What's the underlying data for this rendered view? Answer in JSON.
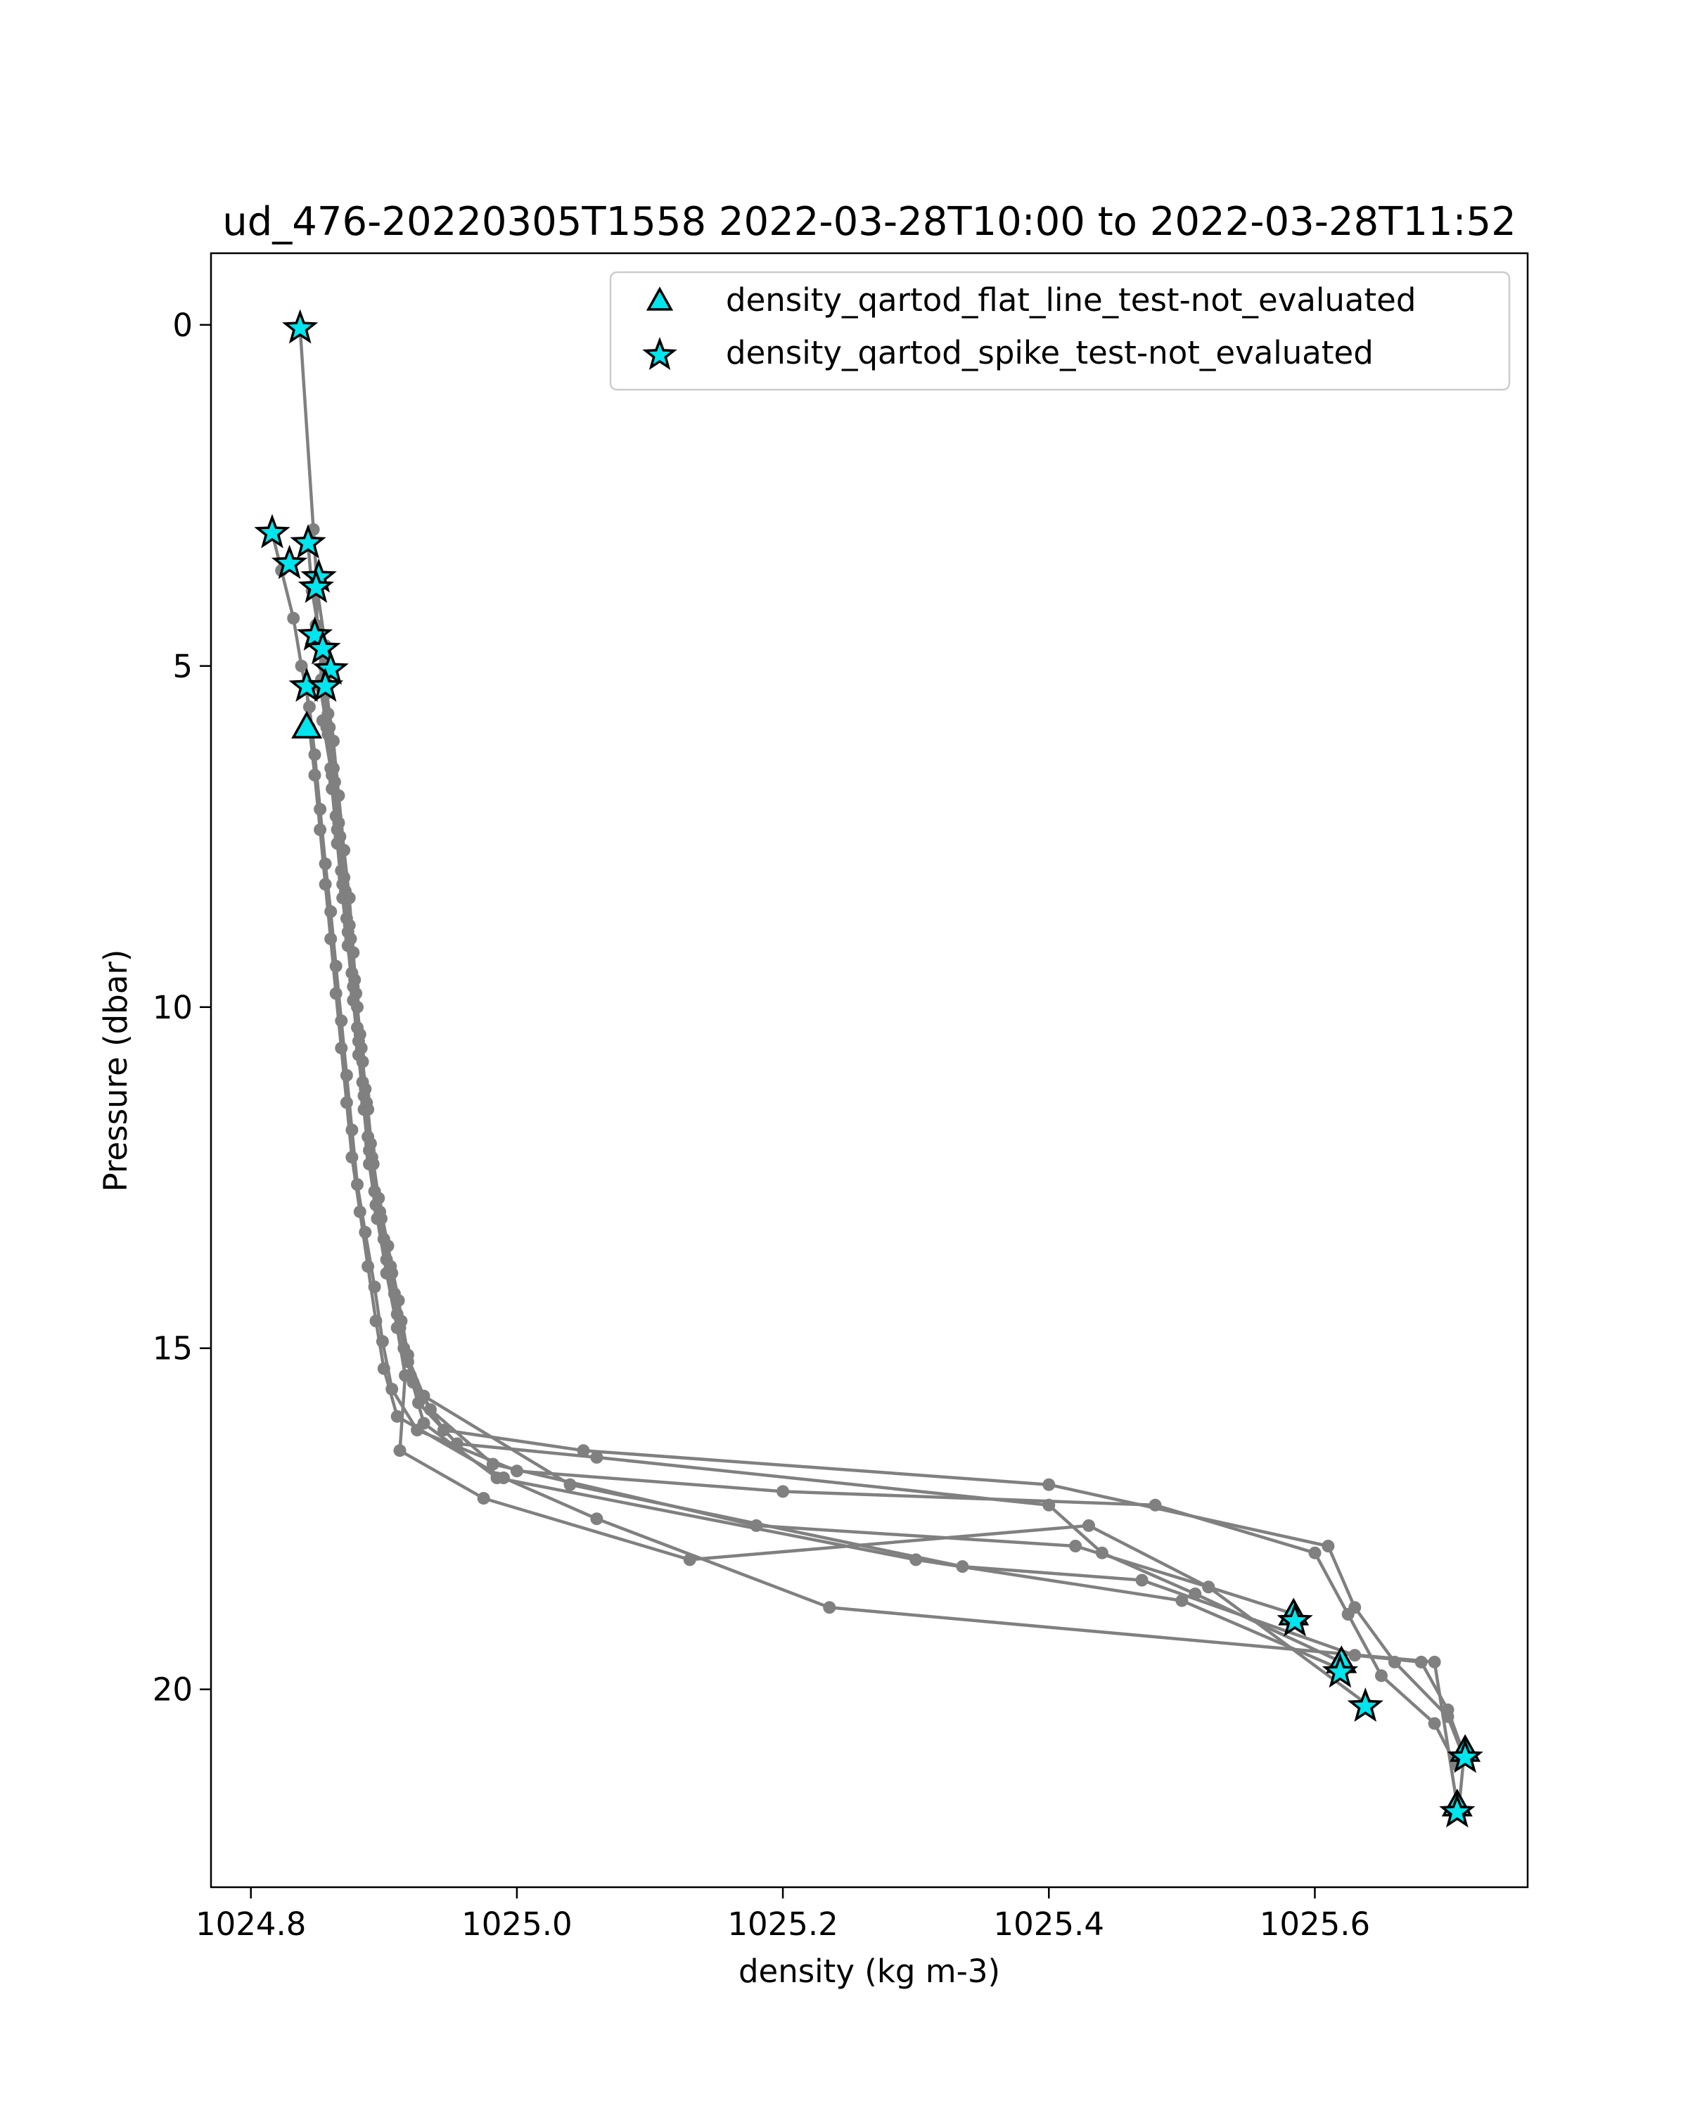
{
  "chart_data": {
    "type": "line",
    "title": "ud_476-20220305T1558 2022-03-28T10:00 to 2022-03-28T11:52",
    "xlabel": "density (kg m-3)",
    "ylabel": "Pressure (dbar)",
    "xlim": [
      1024.77,
      1025.76
    ],
    "ylim": [
      22.9,
      -1.05
    ],
    "y_inverted": true,
    "grid": false,
    "x_ticks": [
      1024.8,
      1025.0,
      1025.2,
      1025.4,
      1025.6
    ],
    "x_tick_labels": [
      "1024.8",
      "1025.0",
      "1025.2",
      "1025.4",
      "1025.6"
    ],
    "y_ticks": [
      0,
      5,
      10,
      15,
      20
    ],
    "y_tick_labels": [
      "0",
      "5",
      "10",
      "15",
      "20"
    ],
    "legend_position": "top-right",
    "colors": {
      "profile": "#808080",
      "marker_fill": "#00e5ee",
      "marker_edge": "#000000"
    },
    "legend": [
      {
        "label": "density_qartod_flat_line_test-not_evaluated",
        "marker": "triangle"
      },
      {
        "label": "density_qartod_spike_test-not_evaluated",
        "marker": "star"
      }
    ],
    "series": [
      {
        "points": [
          [
            1024.837,
            0.05
          ],
          [
            1024.847,
            3.0
          ],
          [
            1024.85,
            3.9
          ],
          [
            1024.856,
            4.7
          ],
          [
            1024.857,
            5.4
          ],
          [
            1024.862,
            6.1
          ],
          [
            1024.866,
            6.9
          ],
          [
            1024.87,
            7.7
          ],
          [
            1024.874,
            8.4
          ],
          [
            1024.877,
            9.2
          ],
          [
            1024.88,
            10.0
          ],
          [
            1024.884,
            10.8
          ],
          [
            1024.888,
            11.5
          ],
          [
            1024.892,
            12.3
          ],
          [
            1024.898,
            13.1
          ],
          [
            1024.906,
            13.9
          ],
          [
            1024.912,
            14.7
          ],
          [
            1024.922,
            15.5
          ],
          [
            1024.945,
            16.2
          ],
          [
            1025.05,
            16.5
          ],
          [
            1025.4,
            17.0
          ],
          [
            1025.61,
            17.9
          ],
          [
            1025.63,
            18.8
          ],
          [
            1025.66,
            19.6
          ],
          [
            1025.7,
            20.4
          ],
          [
            1025.712,
            21.0
          ],
          [
            1025.708,
            21.8
          ]
        ]
      },
      {
        "points": [
          [
            1024.816,
            3.05
          ],
          [
            1024.823,
            3.6
          ],
          [
            1024.832,
            4.3
          ],
          [
            1024.838,
            5.0
          ],
          [
            1024.844,
            5.6
          ],
          [
            1024.848,
            6.3
          ],
          [
            1024.852,
            7.1
          ],
          [
            1024.856,
            7.9
          ],
          [
            1024.86,
            8.6
          ],
          [
            1024.864,
            9.4
          ],
          [
            1024.868,
            10.2
          ],
          [
            1024.872,
            11.0
          ],
          [
            1024.876,
            11.8
          ],
          [
            1024.88,
            12.6
          ],
          [
            1024.886,
            13.3
          ],
          [
            1024.893,
            14.1
          ],
          [
            1024.899,
            14.9
          ],
          [
            1024.906,
            15.6
          ],
          [
            1024.925,
            16.2
          ],
          [
            1025.0,
            16.8
          ],
          [
            1025.2,
            17.1
          ],
          [
            1025.48,
            17.3
          ],
          [
            1025.6,
            18.0
          ],
          [
            1025.625,
            18.9
          ],
          [
            1025.65,
            19.8
          ],
          [
            1025.69,
            20.5
          ],
          [
            1025.706,
            21.1
          ]
        ]
      },
      {
        "points": [
          [
            1024.843,
            3.2
          ],
          [
            1024.846,
            3.9
          ],
          [
            1024.852,
            4.6
          ],
          [
            1024.853,
            5.2
          ],
          [
            1024.857,
            5.9
          ],
          [
            1024.861,
            6.6
          ],
          [
            1024.865,
            7.4
          ],
          [
            1024.869,
            8.2
          ],
          [
            1024.873,
            8.9
          ],
          [
            1024.877,
            9.7
          ],
          [
            1024.881,
            10.5
          ],
          [
            1024.885,
            11.3
          ],
          [
            1024.889,
            12.1
          ],
          [
            1024.894,
            12.9
          ],
          [
            1024.902,
            13.7
          ],
          [
            1024.91,
            14.5
          ],
          [
            1024.918,
            15.2
          ],
          [
            1024.935,
            15.9
          ],
          [
            1024.982,
            16.7
          ],
          [
            1025.18,
            17.6
          ],
          [
            1025.42,
            17.9
          ],
          [
            1025.52,
            18.5
          ],
          [
            1025.585,
            18.9
          ]
        ]
      },
      {
        "points": [
          [
            1024.851,
            3.7
          ],
          [
            1024.849,
            4.4
          ],
          [
            1024.855,
            5.0
          ],
          [
            1024.858,
            5.7
          ],
          [
            1024.862,
            6.5
          ],
          [
            1024.866,
            7.3
          ],
          [
            1024.87,
            8.1
          ],
          [
            1024.874,
            8.8
          ],
          [
            1024.878,
            9.6
          ],
          [
            1024.882,
            10.4
          ],
          [
            1024.886,
            11.2
          ],
          [
            1024.89,
            12.0
          ],
          [
            1024.896,
            12.8
          ],
          [
            1024.903,
            13.5
          ],
          [
            1024.911,
            14.3
          ],
          [
            1024.918,
            15.1
          ],
          [
            1024.926,
            15.8
          ],
          [
            1024.955,
            16.4
          ],
          [
            1025.06,
            16.6
          ],
          [
            1025.4,
            17.3
          ],
          [
            1025.44,
            18.0
          ],
          [
            1025.51,
            18.6
          ],
          [
            1025.62,
            19.6
          ]
        ]
      },
      {
        "points": [
          [
            1024.849,
            3.85
          ],
          [
            1024.85,
            4.5
          ],
          [
            1024.856,
            5.2
          ],
          [
            1024.859,
            5.9
          ],
          [
            1024.863,
            6.7
          ],
          [
            1024.867,
            7.5
          ],
          [
            1024.871,
            8.3
          ],
          [
            1024.875,
            9.0
          ],
          [
            1024.879,
            9.8
          ],
          [
            1024.883,
            10.6
          ],
          [
            1024.887,
            11.4
          ],
          [
            1024.891,
            12.2
          ],
          [
            1024.897,
            13.0
          ],
          [
            1024.905,
            13.8
          ],
          [
            1024.913,
            14.6
          ],
          [
            1024.92,
            15.4
          ],
          [
            1024.93,
            16.1
          ],
          [
            1024.985,
            16.9
          ],
          [
            1025.3,
            18.1
          ],
          [
            1025.5,
            18.7
          ],
          [
            1025.619,
            19.7
          ]
        ]
      },
      {
        "points": [
          [
            1024.854,
            4.75
          ],
          [
            1024.852,
            5.3
          ],
          [
            1024.858,
            6.0
          ],
          [
            1024.861,
            6.8
          ],
          [
            1024.865,
            7.6
          ],
          [
            1024.869,
            8.4
          ],
          [
            1024.873,
            9.1
          ],
          [
            1024.877,
            9.9
          ],
          [
            1024.881,
            10.7
          ],
          [
            1024.885,
            11.5
          ],
          [
            1024.889,
            12.3
          ],
          [
            1024.895,
            13.1
          ],
          [
            1024.902,
            13.9
          ],
          [
            1024.91,
            14.7
          ],
          [
            1024.916,
            15.4
          ],
          [
            1024.912,
            16.5
          ],
          [
            1024.975,
            17.2
          ],
          [
            1025.13,
            18.1
          ],
          [
            1025.43,
            17.6
          ],
          [
            1025.52,
            18.5
          ],
          [
            1025.638,
            20.2
          ]
        ]
      },
      {
        "points": [
          [
            1024.86,
            5.05
          ],
          [
            1024.854,
            5.8
          ],
          [
            1024.86,
            6.5
          ],
          [
            1024.864,
            7.2
          ],
          [
            1024.868,
            8.0
          ],
          [
            1024.872,
            8.7
          ],
          [
            1024.876,
            9.5
          ],
          [
            1024.88,
            10.3
          ],
          [
            1024.884,
            11.1
          ],
          [
            1024.888,
            11.9
          ],
          [
            1024.893,
            12.7
          ],
          [
            1024.9,
            13.4
          ],
          [
            1024.908,
            14.2
          ],
          [
            1024.915,
            15.0
          ],
          [
            1024.93,
            15.7
          ],
          [
            1025.04,
            17.0
          ],
          [
            1025.335,
            18.2
          ],
          [
            1025.47,
            18.4
          ],
          [
            1025.63,
            19.5
          ],
          [
            1025.68,
            19.6
          ],
          [
            1025.7,
            20.3
          ],
          [
            1025.713,
            21.0
          ]
        ]
      },
      {
        "points": [
          [
            1024.842,
            5.3
          ],
          [
            1024.844,
            5.9
          ],
          [
            1024.848,
            6.6
          ],
          [
            1024.852,
            7.4
          ],
          [
            1024.856,
            8.2
          ],
          [
            1024.86,
            9.0
          ],
          [
            1024.864,
            9.8
          ],
          [
            1024.868,
            10.6
          ],
          [
            1024.872,
            11.4
          ],
          [
            1024.876,
            12.2
          ],
          [
            1024.882,
            13.0
          ],
          [
            1024.888,
            13.8
          ],
          [
            1024.894,
            14.6
          ],
          [
            1024.9,
            15.3
          ],
          [
            1024.91,
            16.0
          ],
          [
            1024.99,
            16.9
          ],
          [
            1025.06,
            17.5
          ],
          [
            1025.235,
            18.8
          ],
          [
            1025.69,
            19.6
          ],
          [
            1025.707,
            21.7
          ]
        ]
      }
    ],
    "markers": [
      {
        "marker": "star",
        "x": 1024.837,
        "y": 0.05
      },
      {
        "marker": "star",
        "x": 1024.816,
        "y": 3.05
      },
      {
        "marker": "star",
        "x": 1024.843,
        "y": 3.2
      },
      {
        "marker": "star",
        "x": 1024.829,
        "y": 3.5
      },
      {
        "marker": "star",
        "x": 1024.851,
        "y": 3.7
      },
      {
        "marker": "star",
        "x": 1024.849,
        "y": 3.85
      },
      {
        "marker": "star",
        "x": 1024.848,
        "y": 4.55
      },
      {
        "marker": "star",
        "x": 1024.854,
        "y": 4.75
      },
      {
        "marker": "star",
        "x": 1024.86,
        "y": 5.05
      },
      {
        "marker": "star",
        "x": 1024.842,
        "y": 5.3
      },
      {
        "marker": "star",
        "x": 1024.856,
        "y": 5.3
      },
      {
        "marker": "triangle",
        "x": 1024.842,
        "y": 5.9
      },
      {
        "marker": "triangle",
        "x": 1025.584,
        "y": 18.9
      },
      {
        "marker": "star",
        "x": 1025.585,
        "y": 19.0
      },
      {
        "marker": "triangle",
        "x": 1025.62,
        "y": 19.6
      },
      {
        "marker": "star",
        "x": 1025.619,
        "y": 19.75
      },
      {
        "marker": "star",
        "x": 1025.638,
        "y": 20.25
      },
      {
        "marker": "triangle",
        "x": 1025.713,
        "y": 20.9
      },
      {
        "marker": "star",
        "x": 1025.713,
        "y": 21.0
      },
      {
        "marker": "triangle",
        "x": 1025.707,
        "y": 21.7
      },
      {
        "marker": "star",
        "x": 1025.707,
        "y": 21.8
      }
    ]
  }
}
